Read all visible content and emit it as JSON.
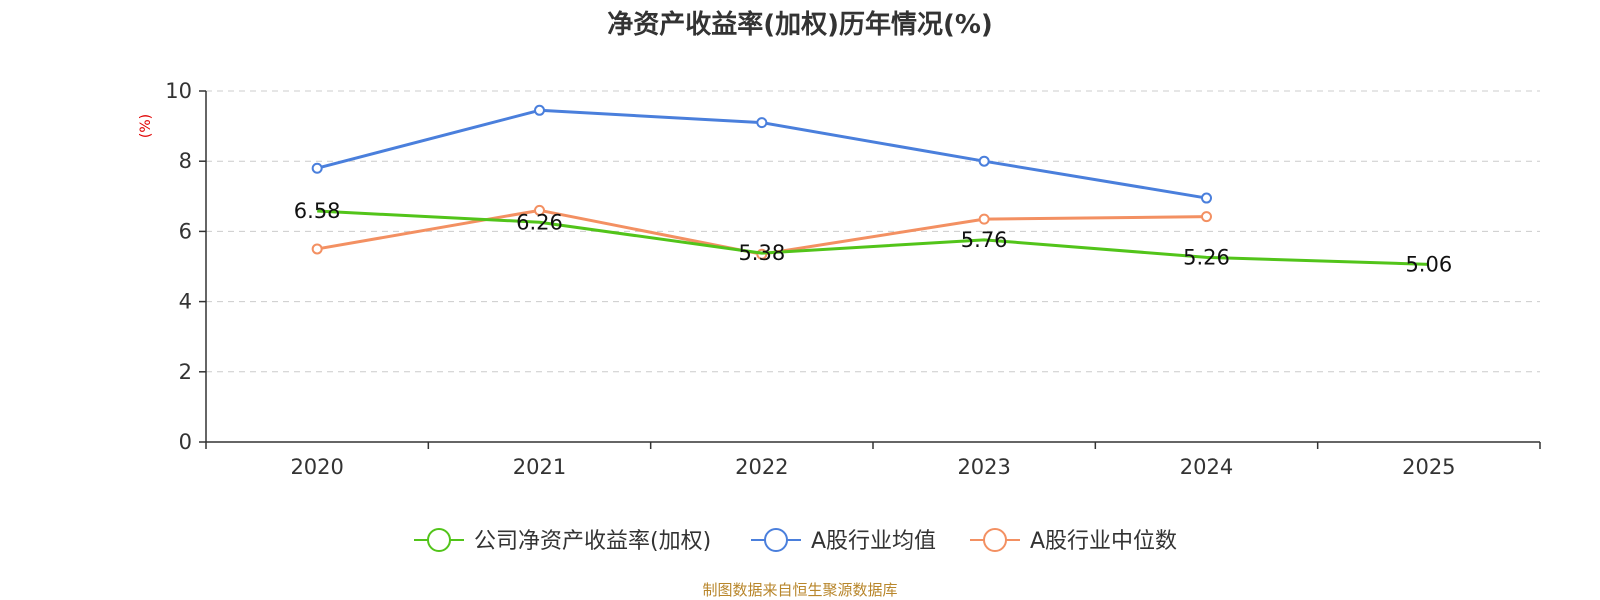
{
  "chart_data": {
    "type": "line",
    "title": "净资产收益率(加权)历年情况(%)",
    "ylabel": "(%)",
    "xlabel": "",
    "categories": [
      "2020",
      "2021",
      "2022",
      "2023",
      "2024",
      "2025"
    ],
    "ylim": [
      0,
      10
    ],
    "yticks": [
      "0",
      "2",
      "4",
      "6",
      "8",
      "10"
    ],
    "grid": true,
    "legend_position": "bottom-center",
    "series": [
      {
        "name": "公司净资产收益率(加权)",
        "color": "#52c41a",
        "values": [
          6.58,
          6.26,
          5.38,
          5.76,
          5.26,
          5.06
        ],
        "labels": [
          "6.58",
          "6.26",
          "5.38",
          "5.76",
          "5.26",
          "5.06"
        ]
      },
      {
        "name": "A股行业均值",
        "color": "#4a7fdc",
        "values": [
          7.8,
          9.45,
          9.1,
          8.0,
          6.95,
          null
        ]
      },
      {
        "name": "A股行业中位数",
        "color": "#f39062",
        "values": [
          5.5,
          6.6,
          5.35,
          6.35,
          6.42,
          null
        ]
      }
    ],
    "source": "制图数据来自恒生聚源数据库",
    "source_color": "#b8862b",
    "unit_color": "#e00000"
  }
}
